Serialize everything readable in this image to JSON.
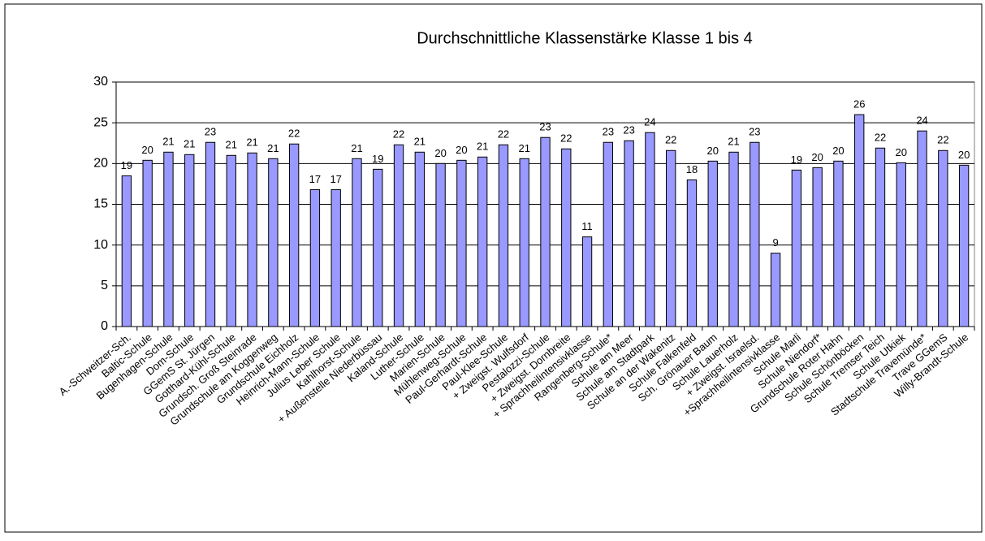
{
  "chart_data": {
    "type": "bar",
    "title": "Durchschnittliche Klassenstärke Klasse 1 bis 4",
    "categories": [
      "A.-Schweitzer-Sch.",
      "Baltic-Schule",
      "Bugenhagen-Schule",
      "Dom-Schule",
      "GGemS St. Jürgen",
      "Gotthard-Kühl-Schule",
      "Grundsch. Groß Steinrade",
      "Grundschule am Koggenweg",
      "Grundschule Eichholz",
      "Heinrich-Mann-Schule",
      "Julius Leber Schule",
      "Kahlhorst-Schule",
      "+ Außenstelle Niederbüssau",
      "Kaland-Schule",
      "Luther-Schule",
      "Marien-Schule",
      "Mühlenweg-Schule",
      "Paul-Gerhardt-Schule",
      "Paul-Klee-Schule",
      "+ Zweigst. Wulfsdorf",
      "Pestalozzi-Schule",
      "+ Zweigst. Dornbreite",
      "+ Sprachheilintensivklasse",
      "Rangenberg-Schule*",
      "Schule am Meer",
      "Schule am Stadtpark",
      "Schule an der Wakenitz",
      "Schule Falkenfeld",
      "Sch. Grönauer Baum",
      "Schule Lauerholz",
      "+ Zweigst. Israelsd.",
      "+Sprachheilintensivklasse",
      "Schule Marli",
      "Schule Niendorf*",
      "Grundschule Roter Hahn",
      "Schule Schönböcken",
      "Schule Tremser Teich",
      "Schule Utkiek",
      "Stadtschule Travemünde*",
      "Trave GGemS",
      "Willy-Brandt-Schule"
    ],
    "values": [
      18.5,
      20.4,
      21.4,
      21.1,
      22.6,
      21.0,
      21.3,
      20.6,
      22.4,
      16.8,
      16.8,
      20.6,
      19.3,
      22.3,
      21.4,
      20.0,
      20.4,
      20.8,
      22.3,
      20.6,
      23.2,
      21.8,
      11.0,
      22.6,
      22.8,
      23.8,
      21.6,
      18.0,
      20.3,
      21.4,
      22.6,
      9.0,
      19.2,
      19.5,
      20.3,
      26.0,
      21.9,
      20.1,
      24.0,
      21.6,
      19.8
    ],
    "value_labels": [
      "19",
      "20",
      "21",
      "21",
      "23",
      "21",
      "21",
      "21",
      "22",
      "17",
      "17",
      "21",
      "19",
      "22",
      "21",
      "20",
      "20",
      "21",
      "22",
      "21",
      "23",
      "22",
      "11",
      "23",
      "23",
      "24",
      "22",
      "18",
      "20",
      "21",
      "23",
      "9",
      "19",
      "20",
      "20",
      "26",
      "22",
      "20",
      "24",
      "22",
      "20"
    ],
    "color": "#9999ff",
    "ylim": [
      0,
      30
    ],
    "yticks": [
      0,
      5,
      10,
      15,
      20,
      25,
      30
    ],
    "grid": true
  }
}
